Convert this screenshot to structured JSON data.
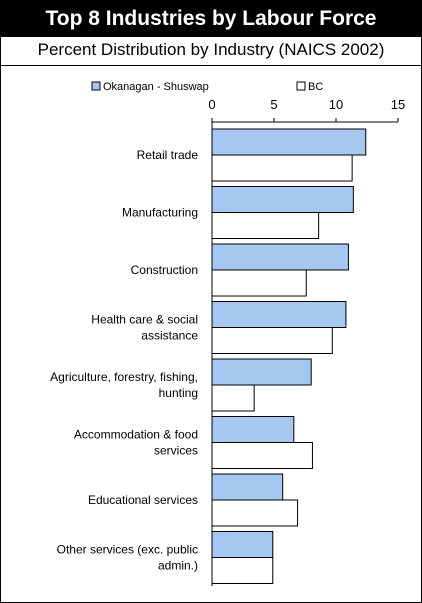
{
  "header": {
    "title": "Top 8 Industries by Labour Force",
    "subtitle": "Percent Distribution by Industry (NAICS 2002)"
  },
  "chart_data": {
    "type": "bar",
    "orientation": "horizontal",
    "title": "Top 8 Industries by Labour Force",
    "subtitle": "Percent Distribution by Industry (NAICS 2002)",
    "xlabel": "",
    "ylabel": "",
    "xlim": [
      0,
      15
    ],
    "x_ticks": [
      "0",
      "5",
      "10",
      "15"
    ],
    "x_axis_position": "top",
    "grid": false,
    "legend_position": "top",
    "categories": [
      [
        "Retail trade"
      ],
      [
        "Manufacturing"
      ],
      [
        "Construction"
      ],
      [
        "Health care & social",
        "assistance"
      ],
      [
        "Agriculture, forestry, fishing,",
        "hunting"
      ],
      [
        "Accommodation & food",
        "services"
      ],
      [
        "Educational services"
      ],
      [
        "Other services (exc. public",
        "admin.)"
      ]
    ],
    "series": [
      {
        "name": "Okanagan - Shuswap",
        "color": "#a6c8f0",
        "values": [
          12.4,
          11.4,
          11.0,
          10.8,
          8.0,
          6.6,
          5.7,
          4.9
        ]
      },
      {
        "name": "BC",
        "color": "#ffffff",
        "values": [
          11.3,
          8.6,
          7.6,
          9.7,
          3.4,
          8.1,
          6.9,
          4.9
        ]
      }
    ]
  }
}
